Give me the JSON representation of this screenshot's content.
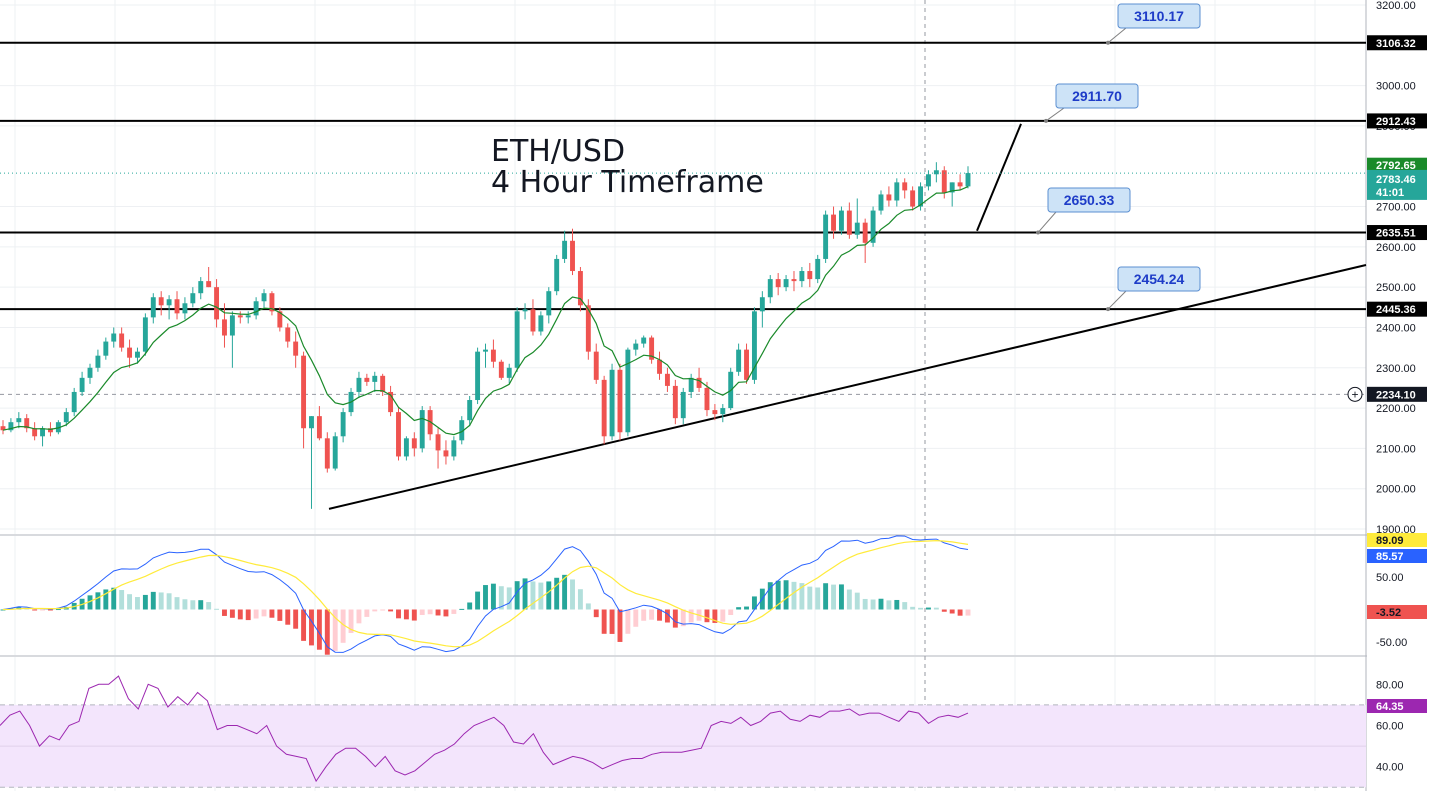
{
  "chart_data": [
    {
      "type": "candlestick",
      "title": "ETH/USD",
      "subtitle": "4 Hour Timeframe",
      "ylim": [
        1890,
        3210
      ],
      "y_ticks": [
        "3200.00",
        "3000.00",
        "2900.00",
        "2700.00",
        "2600.00",
        "2500.00",
        "2400.00",
        "2300.00",
        "2200.00",
        "2100.00",
        "2000.00",
        "1900.00"
      ],
      "grid": true,
      "horizontal_levels": [
        {
          "value": 3106.32,
          "label": "3106.32"
        },
        {
          "value": 2912.43,
          "label": "2912.43"
        },
        {
          "value": 2635.51,
          "label": "2635.51"
        },
        {
          "value": 2445.36,
          "label": "2445.36"
        }
      ],
      "price_labels": [
        {
          "value": 2792.65,
          "label": "2792.65",
          "color": "#1a8a2a"
        },
        {
          "value": 2783.46,
          "label": "2783.46",
          "sub": "41:01",
          "color": "#26a69a"
        }
      ],
      "crosshair": {
        "value": 2234.1,
        "label": "2234.10"
      },
      "callouts": [
        "3110.17",
        "2911.70",
        "2650.33",
        "2454.24"
      ],
      "candles": [
        {
          "o": 2155,
          "h": 2170,
          "l": 2135,
          "c": 2145
        },
        {
          "o": 2145,
          "h": 2175,
          "l": 2140,
          "c": 2165
        },
        {
          "o": 2165,
          "h": 2190,
          "l": 2150,
          "c": 2175
        },
        {
          "o": 2175,
          "h": 2185,
          "l": 2140,
          "c": 2150
        },
        {
          "o": 2150,
          "h": 2165,
          "l": 2120,
          "c": 2130
        },
        {
          "o": 2130,
          "h": 2155,
          "l": 2105,
          "c": 2150
        },
        {
          "o": 2150,
          "h": 2165,
          "l": 2130,
          "c": 2140
        },
        {
          "o": 2140,
          "h": 2170,
          "l": 2135,
          "c": 2165
        },
        {
          "o": 2165,
          "h": 2200,
          "l": 2155,
          "c": 2190
        },
        {
          "o": 2190,
          "h": 2250,
          "l": 2180,
          "c": 2240
        },
        {
          "o": 2240,
          "h": 2290,
          "l": 2230,
          "c": 2275
        },
        {
          "o": 2275,
          "h": 2310,
          "l": 2260,
          "c": 2300
        },
        {
          "o": 2300,
          "h": 2345,
          "l": 2290,
          "c": 2330
        },
        {
          "o": 2330,
          "h": 2375,
          "l": 2320,
          "c": 2365
        },
        {
          "o": 2365,
          "h": 2400,
          "l": 2350,
          "c": 2385
        },
        {
          "o": 2385,
          "h": 2400,
          "l": 2340,
          "c": 2350
        },
        {
          "o": 2350,
          "h": 2370,
          "l": 2300,
          "c": 2325
        },
        {
          "o": 2325,
          "h": 2350,
          "l": 2310,
          "c": 2340
        },
        {
          "o": 2340,
          "h": 2435,
          "l": 2330,
          "c": 2425
        },
        {
          "o": 2425,
          "h": 2485,
          "l": 2410,
          "c": 2475
        },
        {
          "o": 2475,
          "h": 2490,
          "l": 2430,
          "c": 2455
        },
        {
          "o": 2455,
          "h": 2480,
          "l": 2420,
          "c": 2470
        },
        {
          "o": 2470,
          "h": 2490,
          "l": 2420,
          "c": 2435
        },
        {
          "o": 2435,
          "h": 2475,
          "l": 2420,
          "c": 2460
        },
        {
          "o": 2460,
          "h": 2500,
          "l": 2450,
          "c": 2485
        },
        {
          "o": 2485,
          "h": 2525,
          "l": 2470,
          "c": 2515
        },
        {
          "o": 2515,
          "h": 2550,
          "l": 2500,
          "c": 2500
        },
        {
          "o": 2500,
          "h": 2520,
          "l": 2400,
          "c": 2420
        },
        {
          "o": 2420,
          "h": 2460,
          "l": 2350,
          "c": 2380
        },
        {
          "o": 2380,
          "h": 2440,
          "l": 2300,
          "c": 2430
        },
        {
          "o": 2430,
          "h": 2440,
          "l": 2410,
          "c": 2425
        },
        {
          "o": 2425,
          "h": 2440,
          "l": 2410,
          "c": 2430
        },
        {
          "o": 2430,
          "h": 2475,
          "l": 2420,
          "c": 2465
        },
        {
          "o": 2465,
          "h": 2495,
          "l": 2450,
          "c": 2485
        },
        {
          "o": 2485,
          "h": 2490,
          "l": 2430,
          "c": 2440
        },
        {
          "o": 2440,
          "h": 2450,
          "l": 2390,
          "c": 2400
        },
        {
          "o": 2400,
          "h": 2410,
          "l": 2350,
          "c": 2365
        },
        {
          "o": 2365,
          "h": 2390,
          "l": 2300,
          "c": 2330
        },
        {
          "o": 2330,
          "h": 2340,
          "l": 2100,
          "c": 2150
        },
        {
          "o": 2150,
          "h": 2180,
          "l": 1950,
          "c": 2180
        },
        {
          "o": 2180,
          "h": 2205,
          "l": 2120,
          "c": 2125
        },
        {
          "o": 2125,
          "h": 2140,
          "l": 2040,
          "c": 2050
        },
        {
          "o": 2050,
          "h": 2140,
          "l": 2045,
          "c": 2130
        },
        {
          "o": 2130,
          "h": 2200,
          "l": 2115,
          "c": 2190
        },
        {
          "o": 2190,
          "h": 2250,
          "l": 2180,
          "c": 2240
        },
        {
          "o": 2240,
          "h": 2290,
          "l": 2225,
          "c": 2275
        },
        {
          "o": 2275,
          "h": 2285,
          "l": 2255,
          "c": 2265
        },
        {
          "o": 2265,
          "h": 2290,
          "l": 2240,
          "c": 2280
        },
        {
          "o": 2280,
          "h": 2285,
          "l": 2230,
          "c": 2240
        },
        {
          "o": 2240,
          "h": 2255,
          "l": 2180,
          "c": 2190
        },
        {
          "o": 2190,
          "h": 2200,
          "l": 2070,
          "c": 2080
        },
        {
          "o": 2080,
          "h": 2130,
          "l": 2070,
          "c": 2125
        },
        {
          "o": 2125,
          "h": 2140,
          "l": 2080,
          "c": 2100
        },
        {
          "o": 2100,
          "h": 2205,
          "l": 2090,
          "c": 2195
        },
        {
          "o": 2195,
          "h": 2205,
          "l": 2120,
          "c": 2135
        },
        {
          "o": 2135,
          "h": 2150,
          "l": 2050,
          "c": 2095
        },
        {
          "o": 2095,
          "h": 2120,
          "l": 2060,
          "c": 2080
        },
        {
          "o": 2080,
          "h": 2130,
          "l": 2070,
          "c": 2120
        },
        {
          "o": 2120,
          "h": 2180,
          "l": 2110,
          "c": 2170
        },
        {
          "o": 2170,
          "h": 2230,
          "l": 2155,
          "c": 2220
        },
        {
          "o": 2220,
          "h": 2350,
          "l": 2210,
          "c": 2340
        },
        {
          "o": 2340,
          "h": 2360,
          "l": 2300,
          "c": 2345
        },
        {
          "o": 2345,
          "h": 2370,
          "l": 2300,
          "c": 2315
        },
        {
          "o": 2315,
          "h": 2320,
          "l": 2270,
          "c": 2275
        },
        {
          "o": 2275,
          "h": 2310,
          "l": 2260,
          "c": 2300
        },
        {
          "o": 2300,
          "h": 2450,
          "l": 2290,
          "c": 2440
        },
        {
          "o": 2440,
          "h": 2460,
          "l": 2420,
          "c": 2445
        },
        {
          "o": 2445,
          "h": 2470,
          "l": 2380,
          "c": 2390
        },
        {
          "o": 2390,
          "h": 2440,
          "l": 2380,
          "c": 2430
        },
        {
          "o": 2430,
          "h": 2500,
          "l": 2410,
          "c": 2490
        },
        {
          "o": 2490,
          "h": 2580,
          "l": 2480,
          "c": 2570
        },
        {
          "o": 2570,
          "h": 2640,
          "l": 2560,
          "c": 2615
        },
        {
          "o": 2615,
          "h": 2645,
          "l": 2530,
          "c": 2540
        },
        {
          "o": 2540,
          "h": 2550,
          "l": 2440,
          "c": 2455
        },
        {
          "o": 2455,
          "h": 2470,
          "l": 2320,
          "c": 2340
        },
        {
          "o": 2340,
          "h": 2360,
          "l": 2260,
          "c": 2270
        },
        {
          "o": 2270,
          "h": 2280,
          "l": 2110,
          "c": 2130
        },
        {
          "o": 2130,
          "h": 2310,
          "l": 2120,
          "c": 2295
        },
        {
          "o": 2295,
          "h": 2310,
          "l": 2120,
          "c": 2140
        },
        {
          "o": 2140,
          "h": 2350,
          "l": 2130,
          "c": 2345
        },
        {
          "o": 2345,
          "h": 2370,
          "l": 2330,
          "c": 2360
        },
        {
          "o": 2360,
          "h": 2380,
          "l": 2350,
          "c": 2375
        },
        {
          "o": 2375,
          "h": 2380,
          "l": 2310,
          "c": 2320
        },
        {
          "o": 2320,
          "h": 2340,
          "l": 2270,
          "c": 2285
        },
        {
          "o": 2285,
          "h": 2300,
          "l": 2240,
          "c": 2255
        },
        {
          "o": 2255,
          "h": 2270,
          "l": 2160,
          "c": 2175
        },
        {
          "o": 2175,
          "h": 2250,
          "l": 2160,
          "c": 2240
        },
        {
          "o": 2240,
          "h": 2285,
          "l": 2225,
          "c": 2275
        },
        {
          "o": 2275,
          "h": 2300,
          "l": 2240,
          "c": 2250
        },
        {
          "o": 2250,
          "h": 2265,
          "l": 2180,
          "c": 2195
        },
        {
          "o": 2195,
          "h": 2210,
          "l": 2170,
          "c": 2185
        },
        {
          "o": 2185,
          "h": 2210,
          "l": 2165,
          "c": 2200
        },
        {
          "o": 2200,
          "h": 2300,
          "l": 2195,
          "c": 2290
        },
        {
          "o": 2290,
          "h": 2360,
          "l": 2280,
          "c": 2345
        },
        {
          "o": 2345,
          "h": 2360,
          "l": 2260,
          "c": 2270
        },
        {
          "o": 2270,
          "h": 2450,
          "l": 2260,
          "c": 2440
        },
        {
          "o": 2440,
          "h": 2490,
          "l": 2400,
          "c": 2475
        },
        {
          "o": 2475,
          "h": 2530,
          "l": 2460,
          "c": 2520
        },
        {
          "o": 2520,
          "h": 2535,
          "l": 2480,
          "c": 2500
        },
        {
          "o": 2500,
          "h": 2530,
          "l": 2490,
          "c": 2520
        },
        {
          "o": 2520,
          "h": 2540,
          "l": 2490,
          "c": 2515
        },
        {
          "o": 2515,
          "h": 2550,
          "l": 2500,
          "c": 2540
        },
        {
          "o": 2540,
          "h": 2560,
          "l": 2500,
          "c": 2520
        },
        {
          "o": 2520,
          "h": 2580,
          "l": 2510,
          "c": 2570
        },
        {
          "o": 2570,
          "h": 2690,
          "l": 2560,
          "c": 2680
        },
        {
          "o": 2680,
          "h": 2700,
          "l": 2620,
          "c": 2640
        },
        {
          "o": 2640,
          "h": 2700,
          "l": 2630,
          "c": 2690
        },
        {
          "o": 2690,
          "h": 2710,
          "l": 2620,
          "c": 2630
        },
        {
          "o": 2630,
          "h": 2720,
          "l": 2620,
          "c": 2660
        },
        {
          "o": 2660,
          "h": 2670,
          "l": 2560,
          "c": 2610
        },
        {
          "o": 2610,
          "h": 2700,
          "l": 2600,
          "c": 2690
        },
        {
          "o": 2690,
          "h": 2740,
          "l": 2680,
          "c": 2730
        },
        {
          "o": 2730,
          "h": 2750,
          "l": 2700,
          "c": 2715
        },
        {
          "o": 2715,
          "h": 2770,
          "l": 2700,
          "c": 2760
        },
        {
          "o": 2760,
          "h": 2770,
          "l": 2720,
          "c": 2740
        },
        {
          "o": 2740,
          "h": 2750,
          "l": 2690,
          "c": 2700
        },
        {
          "o": 2700,
          "h": 2760,
          "l": 2690,
          "c": 2750
        },
        {
          "o": 2750,
          "h": 2790,
          "l": 2740,
          "c": 2780
        },
        {
          "o": 2780,
          "h": 2810,
          "l": 2760,
          "c": 2790
        },
        {
          "o": 2790,
          "h": 2800,
          "l": 2720,
          "c": 2735
        },
        {
          "o": 2735,
          "h": 2760,
          "l": 2700,
          "c": 2760
        },
        {
          "o": 2760,
          "h": 2780,
          "l": 2740,
          "c": 2750
        },
        {
          "o": 2750,
          "h": 2800,
          "l": 2745,
          "c": 2783
        }
      ]
    },
    {
      "type": "line",
      "name": "stochastic",
      "ylim": [
        -65,
        92
      ],
      "y_ticks": [
        "50.00",
        "-50.00"
      ],
      "value_labels": [
        {
          "value": 89.09,
          "label": "89.09",
          "color": "#ffeb3b",
          "textColor": "#131722"
        },
        {
          "value": 85.57,
          "label": "85.57",
          "color": "#2962ff",
          "textColor": "#ffffff"
        },
        {
          "value": -3.52,
          "label": "-3.52",
          "color": "#ef5350",
          "textColor": "#131722"
        }
      ]
    },
    {
      "type": "line",
      "name": "rsi",
      "ylim": [
        30,
        90
      ],
      "y_ticks": [
        "80.00",
        "60.00",
        "40.00"
      ],
      "band": [
        30,
        70
      ],
      "value_labels": [
        {
          "value": 64.35,
          "label": "64.35",
          "color": "#9c27b0",
          "textColor": "#ffffff"
        }
      ],
      "values": [
        60,
        65,
        67,
        60,
        50,
        55,
        53,
        60,
        62,
        78,
        80,
        80,
        84,
        73,
        68,
        80,
        78,
        69,
        74,
        70,
        76,
        72,
        58,
        60,
        60,
        58,
        56,
        60,
        50,
        46,
        45,
        44,
        33,
        40,
        46,
        49,
        49,
        45,
        40,
        45,
        38,
        36,
        38,
        42,
        46,
        48,
        51,
        56,
        60,
        62,
        64,
        60,
        52,
        51,
        56,
        47,
        41,
        43,
        45,
        44,
        42,
        39,
        41,
        43,
        44,
        44,
        46,
        47,
        47,
        47,
        48,
        49,
        60,
        62,
        61,
        64,
        60,
        62,
        66,
        67,
        63,
        62,
        65,
        64,
        67,
        67,
        68,
        65,
        66,
        66,
        64,
        62,
        67,
        66,
        61,
        64,
        65,
        64,
        66
      ]
    }
  ]
}
